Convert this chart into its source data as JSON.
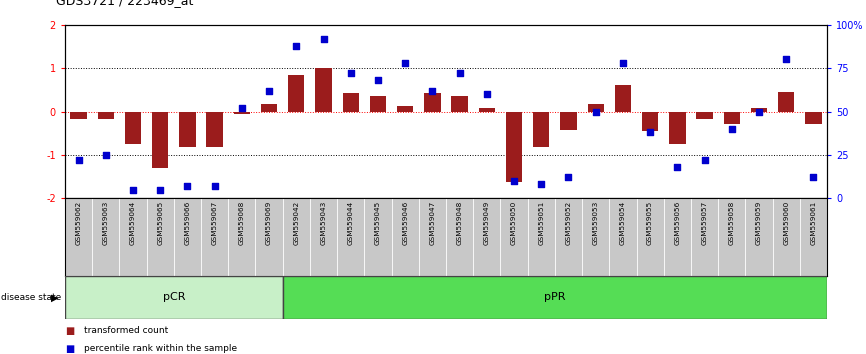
{
  "title": "GDS3721 / 223469_at",
  "samples": [
    "GSM559062",
    "GSM559063",
    "GSM559064",
    "GSM559065",
    "GSM559066",
    "GSM559067",
    "GSM559068",
    "GSM559069",
    "GSM559042",
    "GSM559043",
    "GSM559044",
    "GSM559045",
    "GSM559046",
    "GSM559047",
    "GSM559048",
    "GSM559049",
    "GSM559050",
    "GSM559051",
    "GSM559052",
    "GSM559053",
    "GSM559054",
    "GSM559055",
    "GSM559056",
    "GSM559057",
    "GSM559058",
    "GSM559059",
    "GSM559060",
    "GSM559061"
  ],
  "bar_values": [
    -0.18,
    -0.18,
    -0.75,
    -1.3,
    -0.82,
    -0.82,
    -0.05,
    0.18,
    0.85,
    1.0,
    0.42,
    0.35,
    0.12,
    0.42,
    0.35,
    0.08,
    -1.62,
    -0.82,
    -0.42,
    0.18,
    0.62,
    -0.45,
    -0.75,
    -0.18,
    -0.28,
    0.08,
    0.45,
    -0.28
  ],
  "dot_percentiles": [
    22,
    25,
    5,
    5,
    7,
    7,
    52,
    62,
    88,
    92,
    72,
    68,
    78,
    62,
    72,
    60,
    10,
    8,
    12,
    50,
    78,
    38,
    18,
    22,
    40,
    50,
    80,
    12
  ],
  "pCR_count": 8,
  "pPR_count": 20,
  "bar_color": "#9B1C1C",
  "dot_color": "#0000CD",
  "ylim_left": [
    -2.0,
    2.0
  ],
  "yticks_left": [
    -2,
    -1,
    0,
    1,
    2
  ],
  "ytick_right_vals": [
    0,
    25,
    50,
    75,
    100
  ],
  "ytick_right_labels": [
    "0",
    "25",
    "50",
    "75",
    "100%"
  ],
  "hlines_dotted": [
    -1.0,
    1.0
  ],
  "hline_red": 0.0,
  "legend_bar_label": "transformed count",
  "legend_dot_label": "percentile rank within the sample",
  "disease_state_text": "disease state",
  "pCR_label": "pCR",
  "pPR_label": "pPR",
  "pCR_color": "#C8F0C8",
  "pPR_color": "#55DD55",
  "gray_bg": "#C8C8C8"
}
